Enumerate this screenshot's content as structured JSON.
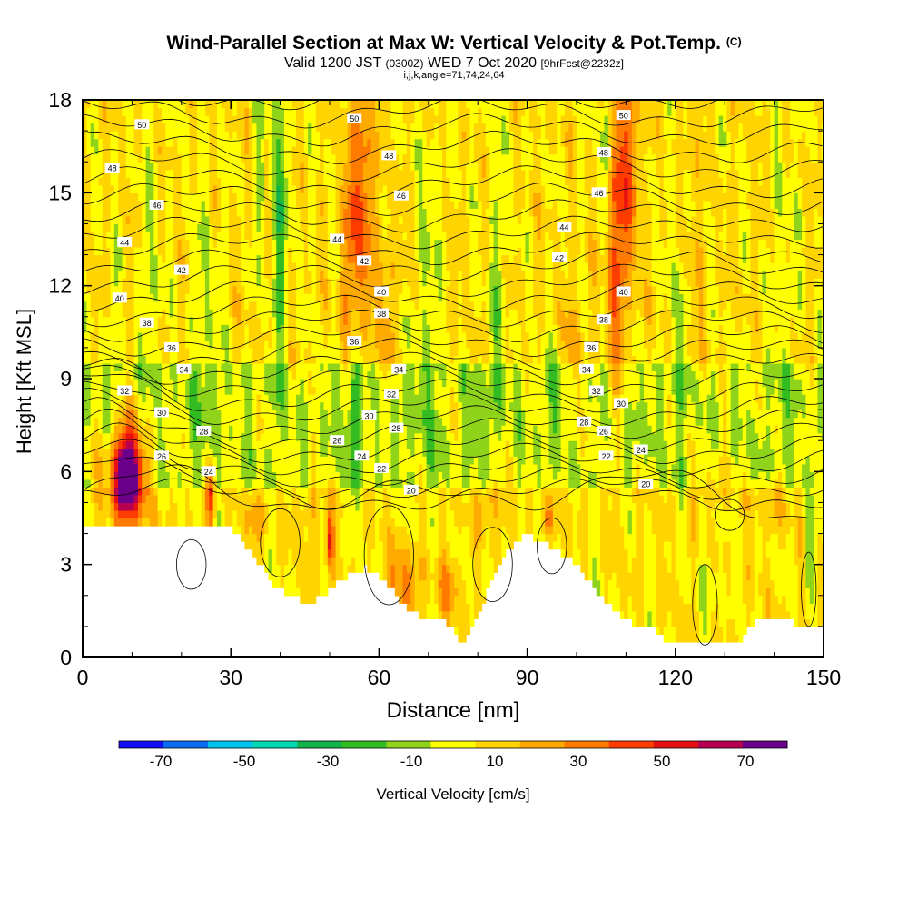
{
  "chart_data": {
    "type": "heatmap",
    "title": "Wind-Parallel Section at Max W: Vertical Velocity & Pot.Temp.",
    "title_mark": "(C)",
    "subtitle_parts": [
      "Valid 1200 JST ",
      "(0300Z)",
      " WED 7 Oct 2020 ",
      "[9hrFcst@2232z]"
    ],
    "subtitle2": "i,j,k,angle=71,74,24,64",
    "xlabel": "Distance [nm]",
    "ylabel": "Height [Kft MSL]",
    "xlim": [
      0,
      150
    ],
    "ylim": [
      0,
      18
    ],
    "x_ticks": [
      0,
      30,
      60,
      90,
      120,
      150
    ],
    "y_ticks": [
      0,
      3,
      6,
      9,
      12,
      15,
      18
    ],
    "colorbar": {
      "label": "Vertical Velocity [cm/s]",
      "tick_labels": [
        "-70",
        "-50",
        "-30",
        "-10",
        "10",
        "30",
        "50",
        "70"
      ],
      "tick_values": [
        -70,
        -50,
        -30,
        -10,
        10,
        30,
        50,
        70
      ],
      "bounds": [
        -80,
        80
      ],
      "colors": [
        "#1010ff",
        "#0a6cf0",
        "#00c4f0",
        "#00d8b4",
        "#10b44a",
        "#33bb22",
        "#8fd41a",
        "#ffff00",
        "#ffd400",
        "#ffaa00",
        "#ff7a00",
        "#ff3c00",
        "#e81010",
        "#b80050",
        "#6a008a"
      ]
    },
    "contour_labels": [
      {
        "x": 12,
        "y": 17.2,
        "v": "50"
      },
      {
        "x": 6,
        "y": 15.8,
        "v": "48"
      },
      {
        "x": 15,
        "y": 14.6,
        "v": "46"
      },
      {
        "x": 8.5,
        "y": 13.4,
        "v": "44"
      },
      {
        "x": 20,
        "y": 12.5,
        "v": "42"
      },
      {
        "x": 7.5,
        "y": 11.6,
        "v": "40"
      },
      {
        "x": 13,
        "y": 10.8,
        "v": "38"
      },
      {
        "x": 18,
        "y": 10.0,
        "v": "36"
      },
      {
        "x": 20.5,
        "y": 9.3,
        "v": "34"
      },
      {
        "x": 8.5,
        "y": 8.6,
        "v": "32"
      },
      {
        "x": 16,
        "y": 7.9,
        "v": "30"
      },
      {
        "x": 24.5,
        "y": 7.3,
        "v": "28"
      },
      {
        "x": 16,
        "y": 6.5,
        "v": "26"
      },
      {
        "x": 25.5,
        "y": 6.0,
        "v": "24"
      },
      {
        "x": 55,
        "y": 17.4,
        "v": "50"
      },
      {
        "x": 62,
        "y": 16.2,
        "v": "48"
      },
      {
        "x": 64.5,
        "y": 14.9,
        "v": "46"
      },
      {
        "x": 51.5,
        "y": 13.5,
        "v": "44"
      },
      {
        "x": 57,
        "y": 12.8,
        "v": "42"
      },
      {
        "x": 60.5,
        "y": 11.8,
        "v": "40"
      },
      {
        "x": 60.5,
        "y": 11.1,
        "v": "38"
      },
      {
        "x": 55,
        "y": 10.2,
        "v": "36"
      },
      {
        "x": 64,
        "y": 9.3,
        "v": "34"
      },
      {
        "x": 62.5,
        "y": 8.5,
        "v": "32"
      },
      {
        "x": 58,
        "y": 7.8,
        "v": "30"
      },
      {
        "x": 63.5,
        "y": 7.4,
        "v": "28"
      },
      {
        "x": 51.5,
        "y": 7.0,
        "v": "26"
      },
      {
        "x": 56.5,
        "y": 6.5,
        "v": "24"
      },
      {
        "x": 60.5,
        "y": 6.1,
        "v": "22"
      },
      {
        "x": 66.5,
        "y": 5.4,
        "v": "20"
      },
      {
        "x": 109.5,
        "y": 17.5,
        "v": "50"
      },
      {
        "x": 105.5,
        "y": 16.3,
        "v": "48"
      },
      {
        "x": 104.5,
        "y": 15.0,
        "v": "46"
      },
      {
        "x": 97.5,
        "y": 13.9,
        "v": "44"
      },
      {
        "x": 96.5,
        "y": 12.9,
        "v": "42"
      },
      {
        "x": 109.5,
        "y": 11.8,
        "v": "40"
      },
      {
        "x": 105.5,
        "y": 10.9,
        "v": "38"
      },
      {
        "x": 103,
        "y": 10.0,
        "v": "36"
      },
      {
        "x": 102,
        "y": 9.3,
        "v": "34"
      },
      {
        "x": 104,
        "y": 8.6,
        "v": "32"
      },
      {
        "x": 109,
        "y": 8.2,
        "v": "30"
      },
      {
        "x": 101.5,
        "y": 7.6,
        "v": "28"
      },
      {
        "x": 105.5,
        "y": 7.3,
        "v": "26"
      },
      {
        "x": 106,
        "y": 6.5,
        "v": "22"
      },
      {
        "x": 113,
        "y": 6.7,
        "v": "24"
      },
      {
        "x": 114,
        "y": 5.6,
        "v": "20"
      }
    ]
  }
}
